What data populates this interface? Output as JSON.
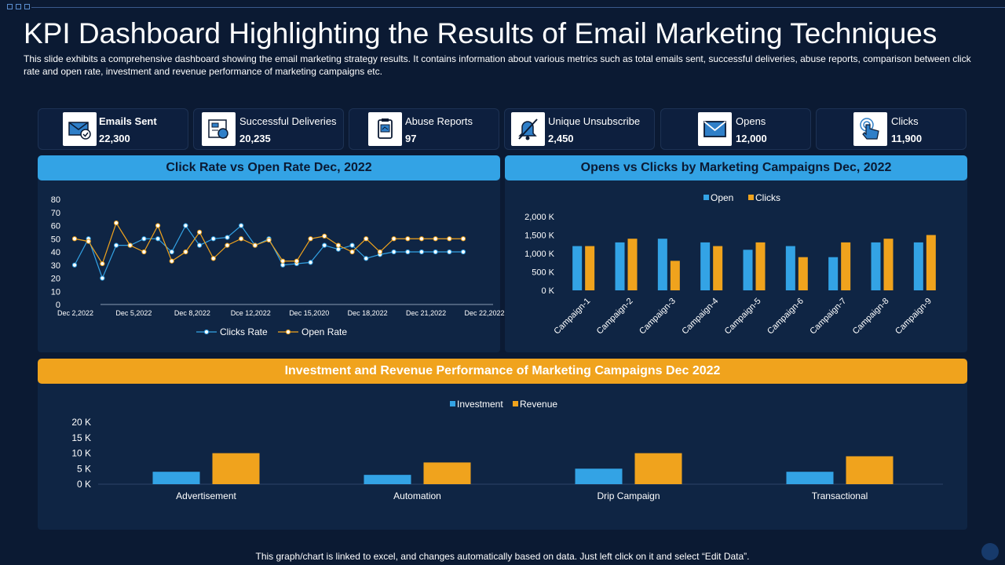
{
  "title": "KPI Dashboard Highlighting the Results of Email Marketing Techniques",
  "description": "This slide exhibits a comprehensive  dashboard  showing the email marketing strategy results. It contains information  about various  metrics such as total emails sent, successful deliveries,  abuse reports,  comparison between  click rate and open rate, investment  and revenue  performance  of marketing campaigns etc.",
  "kpis": [
    {
      "label": "Emails Sent",
      "value": "22,300",
      "icon": "email-check-icon"
    },
    {
      "label": "Successful Deliveries",
      "value": "20,235",
      "icon": "delivery-icon"
    },
    {
      "label": "Abuse Reports",
      "value": "97",
      "icon": "report-icon"
    },
    {
      "label": "Unique  Unsubscribe",
      "value": "2,450",
      "icon": "muted-bell-icon"
    },
    {
      "label": "Opens",
      "value": "12,000",
      "icon": "envelope-icon"
    },
    {
      "label": "Clicks",
      "value": "11,900",
      "icon": "hand-click-icon"
    }
  ],
  "panels": {
    "rates_title": "Click Rate vs Open Rate Dec, 2022",
    "campaigns_title": "Opens vs Clicks by Marketing Campaigns Dec, 2022",
    "investment_title": "Investment and Revenue Performance of Marketing Campaigns Dec 2022"
  },
  "colors": {
    "blue": "#33a3e5",
    "orange": "#f0a31d",
    "bg": "#0b1a33",
    "panel": "#0f2544"
  },
  "footer": "This graph/chart is linked to excel,  and changes automatically based on data. Just left click on it and select “Edit Data”.",
  "chart_data": [
    {
      "type": "line",
      "title": "Click Rate vs Open Rate Dec, 2022",
      "x_tick_labels": [
        "Dec 2,2022",
        "Dec 5,2022",
        "Dec 8,2022",
        "Dce 12,2022",
        "Dec 15,2020",
        "Dec 18,2022",
        "Dec 21,2022",
        "Dec 22,2022"
      ],
      "ylim": [
        0,
        80
      ],
      "y_ticks": [
        0,
        10,
        20,
        30,
        40,
        50,
        60,
        70,
        80
      ],
      "legend_position": "bottom",
      "series": [
        {
          "name": "Clicks Rate",
          "color": "#33a3e5",
          "values": [
            30,
            50,
            20,
            45,
            45,
            50,
            50,
            40,
            60,
            45,
            50,
            51,
            60,
            45,
            50,
            30,
            31,
            32,
            45,
            42,
            45,
            35,
            38,
            40,
            40,
            40,
            40,
            40,
            40
          ]
        },
        {
          "name": "Open Rate",
          "color": "#f0a31d",
          "values": [
            50,
            48,
            31,
            62,
            45,
            40,
            60,
            33,
            40,
            55,
            35,
            45,
            50,
            45,
            49,
            33,
            33,
            50,
            52,
            45,
            40,
            50,
            40,
            50,
            50,
            50,
            50,
            50,
            50
          ]
        }
      ]
    },
    {
      "type": "bar",
      "title": "Opens vs Clicks by Marketing Campaigns Dec, 2022",
      "categories": [
        "Campaign-1",
        "Campaign-2",
        "Campaign-3",
        "Campaign-4",
        "Campaign-5",
        "Campaign-6",
        "Campaign-7",
        "Campaign-8",
        "Campaign-9"
      ],
      "y_tick_labels": [
        "0 K",
        "500 K",
        "1,000 K",
        "1,500 K",
        "2,000 K"
      ],
      "ylim": [
        0,
        2000
      ],
      "legend_position": "top",
      "series": [
        {
          "name": "Open",
          "color": "#33a3e5",
          "values": [
            1200,
            1300,
            1400,
            1300,
            1100,
            1200,
            900,
            1300,
            1300
          ]
        },
        {
          "name": "Clicks",
          "color": "#f0a31d",
          "values": [
            1200,
            1400,
            800,
            1200,
            1300,
            900,
            1300,
            1400,
            1500
          ]
        }
      ]
    },
    {
      "type": "bar",
      "title": "Investment and Revenue Performance of Marketing Campaigns Dec 2022",
      "categories": [
        "Advertisement",
        "Automation",
        "Drip Campaign",
        "Transactional"
      ],
      "y_tick_labels": [
        "0 K",
        "5 K",
        "10 K",
        "15 K",
        "20 K"
      ],
      "ylim": [
        0,
        20
      ],
      "legend_position": "top",
      "series": [
        {
          "name": "Investment",
          "color": "#33a3e5",
          "values": [
            4,
            3,
            5,
            4
          ]
        },
        {
          "name": "Revenue",
          "color": "#f0a31d",
          "values": [
            10,
            7,
            10,
            9
          ]
        }
      ]
    }
  ]
}
